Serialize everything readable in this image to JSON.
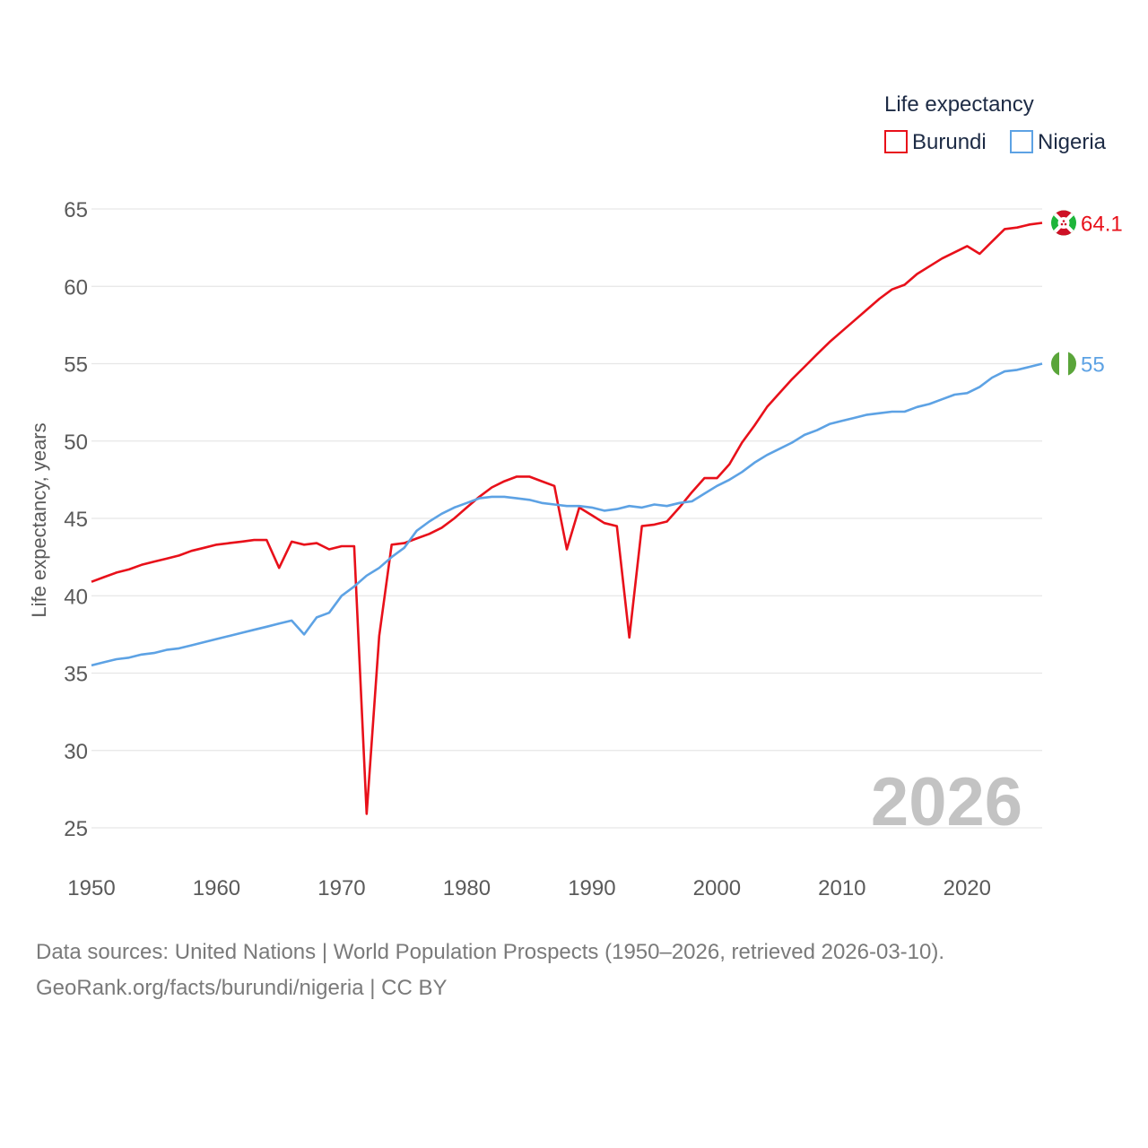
{
  "chart_data": {
    "type": "line",
    "ylabel": "Life expectancy, years",
    "xlim": [
      1950,
      2026
    ],
    "ylim": [
      23,
      66
    ],
    "x_ticks": [
      1950,
      1960,
      1970,
      1980,
      1990,
      2000,
      2010,
      2020
    ],
    "y_ticks": [
      25,
      30,
      35,
      40,
      45,
      50,
      55,
      60,
      65
    ],
    "legend": {
      "title": "Life expectancy",
      "position": "top-right"
    },
    "year_label": "2026",
    "series": [
      {
        "name": "Burundi",
        "color": "#e8101a",
        "flag": "burundi-flag",
        "end_label": "64.1",
        "x": [
          1950,
          1951,
          1952,
          1953,
          1954,
          1955,
          1956,
          1957,
          1958,
          1959,
          1960,
          1961,
          1962,
          1963,
          1964,
          1965,
          1966,
          1967,
          1968,
          1969,
          1970,
          1971,
          1972,
          1973,
          1974,
          1975,
          1976,
          1977,
          1978,
          1979,
          1980,
          1981,
          1982,
          1983,
          1984,
          1985,
          1986,
          1987,
          1988,
          1989,
          1990,
          1991,
          1992,
          1993,
          1994,
          1995,
          1996,
          1997,
          1998,
          1999,
          2000,
          2001,
          2002,
          2003,
          2004,
          2005,
          2006,
          2007,
          2008,
          2009,
          2010,
          2011,
          2012,
          2013,
          2014,
          2015,
          2016,
          2017,
          2018,
          2019,
          2020,
          2021,
          2022,
          2023,
          2024,
          2025,
          2026
        ],
        "values": [
          40.9,
          41.2,
          41.5,
          41.7,
          42.0,
          42.2,
          42.4,
          42.6,
          42.9,
          43.1,
          43.3,
          43.4,
          43.5,
          43.6,
          43.6,
          41.8,
          43.5,
          43.3,
          43.4,
          43.0,
          43.2,
          43.2,
          25.9,
          37.4,
          43.3,
          43.4,
          43.7,
          44.0,
          44.4,
          45.0,
          45.7,
          46.4,
          47.0,
          47.4,
          47.7,
          47.7,
          47.4,
          47.1,
          43.0,
          45.7,
          45.2,
          44.7,
          44.5,
          37.3,
          44.5,
          44.6,
          44.8,
          45.7,
          46.7,
          47.6,
          47.6,
          48.5,
          49.9,
          51.0,
          52.2,
          53.1,
          54.0,
          54.8,
          55.6,
          56.4,
          57.1,
          57.8,
          58.5,
          59.2,
          59.8,
          60.1,
          60.8,
          61.3,
          61.8,
          62.2,
          62.6,
          62.1,
          62.9,
          63.7,
          63.8,
          64.0,
          64.1
        ]
      },
      {
        "name": "Nigeria",
        "color": "#5da2e4",
        "flag": "nigeria-flag",
        "end_label": "55",
        "x": [
          1950,
          1951,
          1952,
          1953,
          1954,
          1955,
          1956,
          1957,
          1958,
          1959,
          1960,
          1961,
          1962,
          1963,
          1964,
          1965,
          1966,
          1967,
          1968,
          1969,
          1970,
          1971,
          1972,
          1973,
          1974,
          1975,
          1976,
          1977,
          1978,
          1979,
          1980,
          1981,
          1982,
          1983,
          1984,
          1985,
          1986,
          1987,
          1988,
          1989,
          1990,
          1991,
          1992,
          1993,
          1994,
          1995,
          1996,
          1997,
          1998,
          1999,
          2000,
          2001,
          2002,
          2003,
          2004,
          2005,
          2006,
          2007,
          2008,
          2009,
          2010,
          2011,
          2012,
          2013,
          2014,
          2015,
          2016,
          2017,
          2018,
          2019,
          2020,
          2021,
          2022,
          2023,
          2024,
          2025,
          2026
        ],
        "values": [
          35.5,
          35.7,
          35.9,
          36.0,
          36.2,
          36.3,
          36.5,
          36.6,
          36.8,
          37.0,
          37.2,
          37.4,
          37.6,
          37.8,
          38.0,
          38.2,
          38.4,
          37.5,
          38.6,
          38.9,
          40.0,
          40.6,
          41.3,
          41.8,
          42.5,
          43.1,
          44.2,
          44.8,
          45.3,
          45.7,
          46.0,
          46.3,
          46.4,
          46.4,
          46.3,
          46.2,
          46.0,
          45.9,
          45.8,
          45.8,
          45.7,
          45.5,
          45.6,
          45.8,
          45.7,
          45.9,
          45.8,
          46.0,
          46.1,
          46.6,
          47.1,
          47.5,
          48.0,
          48.6,
          49.1,
          49.5,
          49.9,
          50.4,
          50.7,
          51.1,
          51.3,
          51.5,
          51.7,
          51.8,
          51.9,
          51.9,
          52.2,
          52.4,
          52.7,
          53.0,
          53.1,
          53.5,
          54.1,
          54.5,
          54.6,
          54.8,
          55.0
        ]
      }
    ]
  },
  "footer": {
    "line1": "Data sources: United Nations | World Population Prospects (1950–2026, retrieved 2026-03-10).",
    "line2": "GeoRank.org/facts/burundi/nigeria | CC BY"
  },
  "colors": {
    "grid": "#e6e6e6",
    "tick_text": "#5a5a5a",
    "legend_text": "#1d2b45",
    "year_label": "#c3c3c3"
  }
}
